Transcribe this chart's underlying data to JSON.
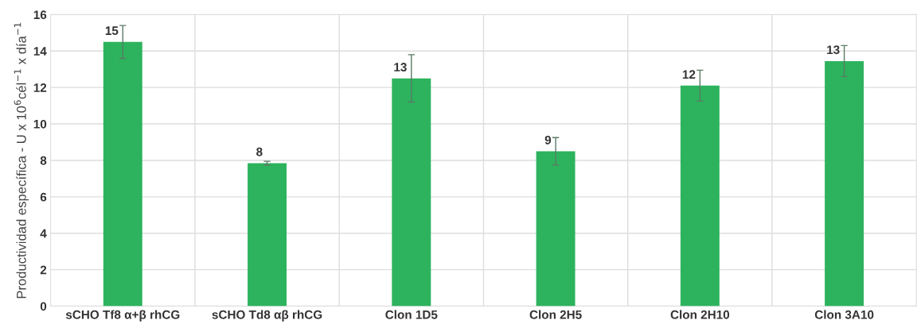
{
  "chart_data": {
    "type": "bar",
    "ylabel": "Productividad específica - U x 10$^{6}$cél$^{−1}$ x día$^{−1}$",
    "categories": [
      "sCHO Tf8 α+β rhCG",
      "sCHO Td8 αβ rhCG",
      "Clon 1D5",
      "Clon 2H5",
      "Clon 2H10",
      "Clon 3A10"
    ],
    "values": [
      14.5,
      7.85,
      12.5,
      8.5,
      12.1,
      13.45
    ],
    "errors": [
      0.9,
      0.1,
      1.3,
      0.75,
      0.85,
      0.85
    ],
    "value_labels": [
      "15",
      "8",
      "13",
      "9",
      "12",
      "13"
    ],
    "color": "#2db35d",
    "ylim": [
      0,
      16
    ],
    "yticks": [
      0,
      2,
      4,
      6,
      8,
      10,
      12,
      14,
      16
    ],
    "grid": "y"
  }
}
